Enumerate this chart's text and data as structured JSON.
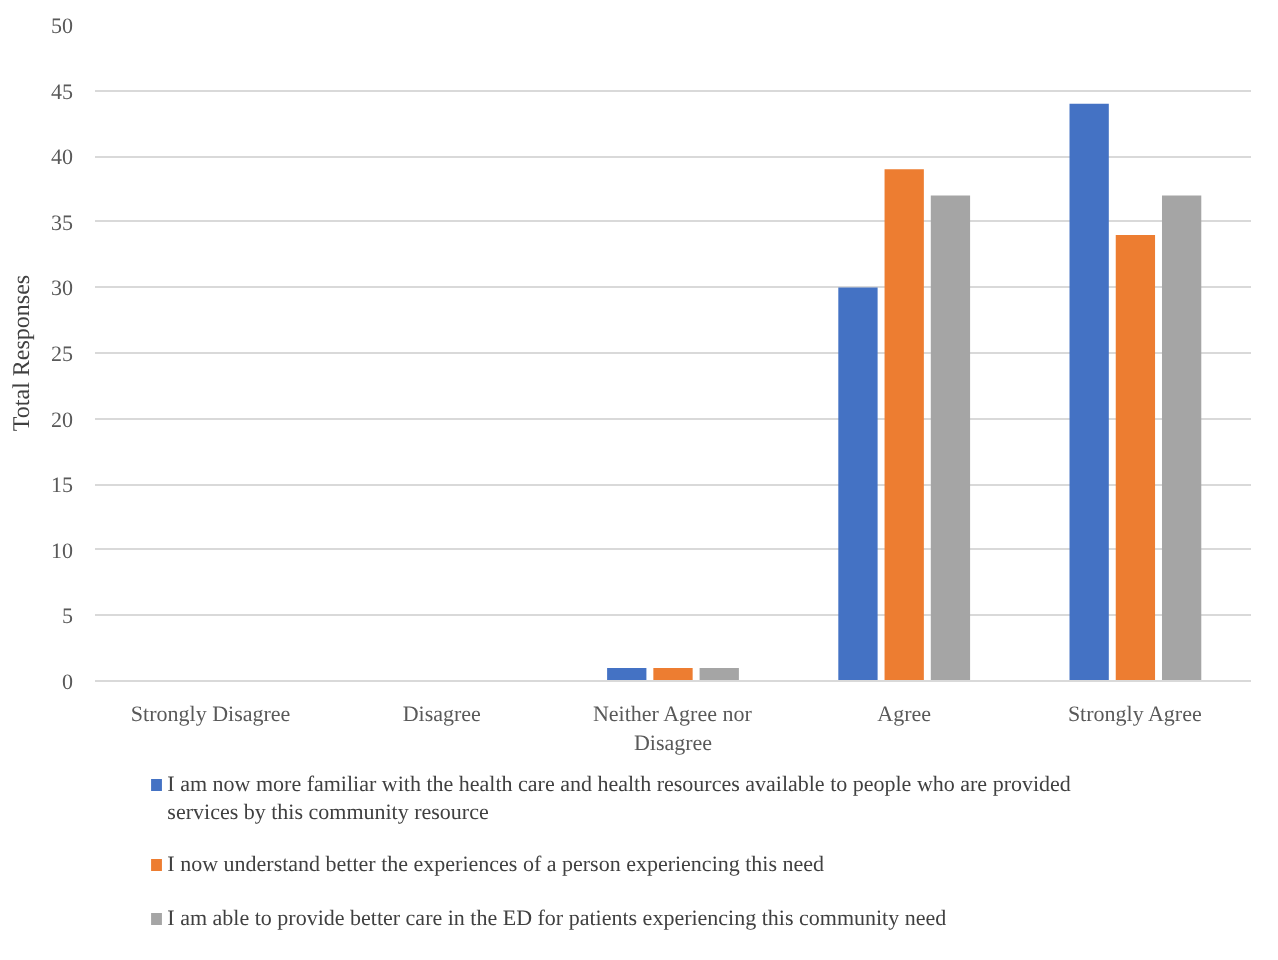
{
  "chart_data": {
    "type": "bar",
    "ylabel": "Total Responses",
    "categories": [
      "Strongly Disagree",
      "Disagree",
      "Neither Agree nor Disagree",
      "Agree",
      "Strongly Agree"
    ],
    "series": [
      {
        "name": "I am now more familiar with the health care and health resources available to people who are provided services by this community resource",
        "color": "#4472c4",
        "values": [
          0,
          0,
          1,
          30,
          44
        ]
      },
      {
        "name": "I now understand better the experiences of a person experiencing this need",
        "color": "#ed7d31",
        "values": [
          0,
          0,
          1,
          39,
          34
        ]
      },
      {
        "name": "I am able to provide better care in the ED for patients experiencing this community need",
        "color": "#a5a5a5",
        "values": [
          0,
          0,
          1,
          37,
          37
        ]
      }
    ],
    "ylim": [
      0,
      50
    ],
    "yticks": [
      0,
      5,
      10,
      15,
      20,
      25,
      30,
      35,
      40,
      45,
      50
    ],
    "grid": "y",
    "legend": "bottom"
  }
}
